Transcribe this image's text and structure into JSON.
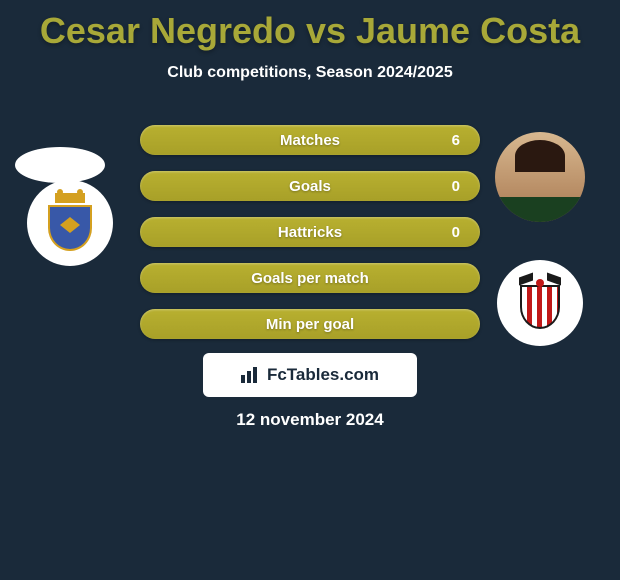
{
  "title": "Cesar Negredo vs Jaume Costa",
  "subtitle": "Club competitions, Season 2024/2025",
  "date": "12 november 2024",
  "logo_text": "FcTables.com",
  "colors": {
    "background": "#1a2a3a",
    "title_color": "#a8a838",
    "bar_color": "#a8a028",
    "text_white": "#ffffff"
  },
  "stats": [
    {
      "label": "Matches",
      "value_right": "6"
    },
    {
      "label": "Goals",
      "value_right": "0"
    },
    {
      "label": "Hattricks",
      "value_right": "0"
    },
    {
      "label": "Goals per match",
      "value_right": ""
    },
    {
      "label": "Min per goal",
      "value_right": ""
    }
  ],
  "players": {
    "left": {
      "name": "Cesar Negredo"
    },
    "right": {
      "name": "Jaume Costa"
    }
  },
  "teams": {
    "left": {
      "name": "Real Oviedo"
    },
    "right": {
      "name": "Albacete"
    }
  }
}
